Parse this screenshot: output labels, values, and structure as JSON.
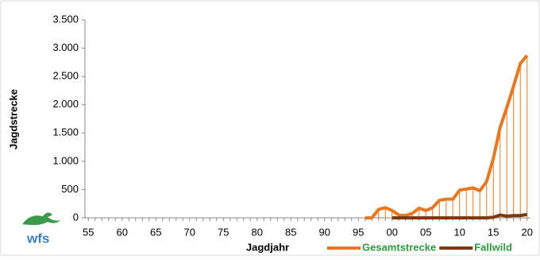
{
  "logo": "wfs",
  "chart_data": {
    "type": "line",
    "y_label": "Jagdstrecke",
    "x_label": "Jagdjahr",
    "categories": [
      "55",
      null,
      null,
      null,
      null,
      "60",
      null,
      null,
      null,
      null,
      "65",
      null,
      null,
      null,
      null,
      "70",
      null,
      null,
      null,
      null,
      "75",
      null,
      null,
      null,
      null,
      "80",
      null,
      null,
      null,
      null,
      "85",
      null,
      null,
      null,
      null,
      "90",
      null,
      null,
      null,
      null,
      "95",
      null,
      null,
      null,
      null,
      "00",
      null,
      null,
      null,
      null,
      "05",
      null,
      null,
      null,
      null,
      "10",
      null,
      null,
      null,
      null,
      "15",
      null,
      null,
      null,
      null,
      "20"
    ],
    "series": [
      {
        "name": "Gesamtstrecke",
        "color": "#e87722",
        "drop_lines": true,
        "values": [
          null,
          null,
          null,
          null,
          null,
          null,
          null,
          null,
          null,
          null,
          null,
          null,
          null,
          null,
          null,
          null,
          null,
          null,
          null,
          null,
          null,
          null,
          null,
          null,
          null,
          null,
          null,
          null,
          null,
          null,
          null,
          null,
          null,
          null,
          null,
          null,
          null,
          null,
          null,
          null,
          null,
          0,
          0,
          150,
          180,
          130,
          50,
          40,
          80,
          170,
          130,
          180,
          310,
          330,
          330,
          490,
          510,
          530,
          480,
          640,
          1050,
          1600,
          1950,
          2330,
          2730,
          2870
        ]
      },
      {
        "name": "Fallwild",
        "color": "#7b3a10",
        "drop_lines": false,
        "values": [
          null,
          null,
          null,
          null,
          null,
          null,
          null,
          null,
          null,
          null,
          null,
          null,
          null,
          null,
          null,
          null,
          null,
          null,
          null,
          null,
          null,
          null,
          null,
          null,
          null,
          null,
          null,
          null,
          null,
          null,
          null,
          null,
          null,
          null,
          null,
          null,
          null,
          null,
          null,
          null,
          null,
          null,
          null,
          null,
          null,
          0,
          0,
          0,
          0,
          0,
          0,
          0,
          0,
          0,
          0,
          0,
          0,
          0,
          0,
          0,
          10,
          50,
          30,
          40,
          40,
          60
        ]
      }
    ],
    "ylim": [
      0,
      3500
    ],
    "yticks": [
      0,
      500,
      {
        "value": 1000,
        "label": "1.000"
      },
      {
        "value": 1500,
        "label": "1.500"
      },
      {
        "value": 2000,
        "label": "2.000"
      },
      {
        "value": 2500,
        "label": "2.500"
      },
      {
        "value": 3000,
        "label": "3.000"
      },
      {
        "value": 3500,
        "label": "3.500"
      }
    ],
    "grid": false
  }
}
